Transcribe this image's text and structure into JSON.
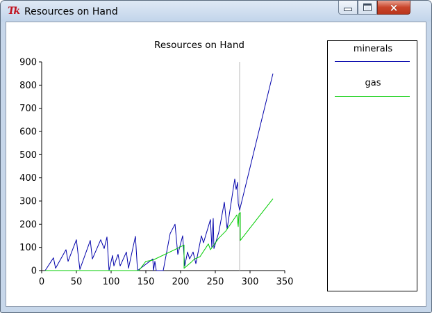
{
  "window": {
    "title": "Resources on Hand",
    "app_icon_text": "Tk",
    "buttons": {
      "minimize": "minimize",
      "maximize": "maximize",
      "close": "×"
    }
  },
  "legend": {
    "items": [
      {
        "label": "minerals",
        "color": "#0000aa"
      },
      {
        "label": "gas",
        "color": "#00cc00"
      }
    ]
  },
  "chart_data": {
    "type": "line",
    "title": "Resources on Hand",
    "xlabel": "",
    "ylabel": "",
    "xlim": [
      0,
      350
    ],
    "ylim": [
      0,
      900
    ],
    "x_ticks": [
      "0",
      "50",
      "100",
      "150",
      "200",
      "250",
      "300",
      "350"
    ],
    "y_ticks": [
      "0",
      "100",
      "200",
      "300",
      "400",
      "500",
      "600",
      "700",
      "800",
      "900"
    ],
    "grid": false,
    "legend_position": "right",
    "vertical_marker_x": 285,
    "series": [
      {
        "name": "minerals",
        "color": "#0000aa",
        "points": [
          [
            5,
            0
          ],
          [
            17,
            55
          ],
          [
            20,
            10
          ],
          [
            35,
            90
          ],
          [
            38,
            40
          ],
          [
            50,
            133
          ],
          [
            55,
            5
          ],
          [
            70,
            130
          ],
          [
            73,
            50
          ],
          [
            85,
            133
          ],
          [
            90,
            95
          ],
          [
            94,
            145
          ],
          [
            97,
            0
          ],
          [
            102,
            65
          ],
          [
            104,
            20
          ],
          [
            110,
            70
          ],
          [
            113,
            20
          ],
          [
            122,
            80
          ],
          [
            125,
            10
          ],
          [
            135,
            148
          ],
          [
            138,
            0
          ],
          [
            160,
            50
          ],
          [
            161,
            0
          ],
          [
            163,
            40
          ],
          [
            165,
            0
          ],
          [
            175,
            0
          ],
          [
            185,
            160
          ],
          [
            192,
            200
          ],
          [
            196,
            70
          ],
          [
            203,
            150
          ],
          [
            206,
            20
          ],
          [
            210,
            80
          ],
          [
            213,
            50
          ],
          [
            218,
            80
          ],
          [
            222,
            30
          ],
          [
            230,
            150
          ],
          [
            233,
            120
          ],
          [
            243,
            220
          ],
          [
            245,
            100
          ],
          [
            247,
            225
          ],
          [
            248,
            95
          ],
          [
            255,
            165
          ],
          [
            263,
            295
          ],
          [
            267,
            180
          ],
          [
            278,
            395
          ],
          [
            280,
            350
          ],
          [
            282,
            380
          ],
          [
            283,
            290
          ],
          [
            285,
            260
          ],
          [
            333,
            850
          ]
        ]
      },
      {
        "name": "gas",
        "color": "#00cc00",
        "points": [
          [
            5,
            0
          ],
          [
            140,
            0
          ],
          [
            150,
            40
          ],
          [
            160,
            45
          ],
          [
            195,
            95
          ],
          [
            205,
            110
          ],
          [
            205,
            10
          ],
          [
            215,
            35
          ],
          [
            220,
            50
          ],
          [
            228,
            60
          ],
          [
            240,
            115
          ],
          [
            243,
            90
          ],
          [
            255,
            140
          ],
          [
            265,
            170
          ],
          [
            281,
            240
          ],
          [
            283,
            190
          ],
          [
            284,
            245
          ],
          [
            286,
            250
          ],
          [
            286,
            130
          ],
          [
            333,
            310
          ]
        ]
      }
    ]
  }
}
